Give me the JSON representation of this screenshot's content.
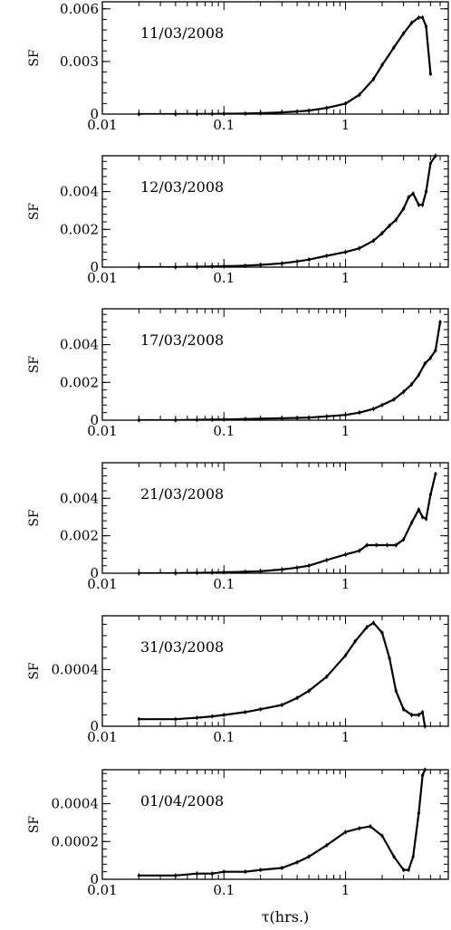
{
  "chart_data": [
    {
      "type": "line",
      "text": "11/03/2008",
      "ylabel": "SF",
      "x_ticks": [
        "0.01",
        "0.1",
        "1"
      ],
      "y_ticks": [
        {
          "v": 0,
          "label": "0"
        },
        {
          "v": 0.003,
          "label": "0.003"
        },
        {
          "v": 0.006,
          "label": "0.006"
        }
      ],
      "xlim": [
        0.01,
        7
      ],
      "ylim": [
        0,
        0.0064
      ],
      "xscale": "log",
      "x": [
        0.02,
        0.04,
        0.06,
        0.08,
        0.1,
        0.15,
        0.2,
        0.3,
        0.4,
        0.5,
        0.7,
        1.0,
        1.3,
        1.7,
        2.0,
        2.5,
        3.0,
        3.5,
        4.0,
        4.3,
        4.6,
        5.0
      ],
      "values": [
        0.0,
        0.0,
        1e-05,
        1e-05,
        2e-05,
        3e-05,
        5e-05,
        0.0001,
        0.00015,
        0.0002,
        0.00035,
        0.0006,
        0.0011,
        0.002,
        0.0028,
        0.0038,
        0.0046,
        0.0052,
        0.0055,
        0.0055,
        0.005,
        0.0023
      ]
    },
    {
      "type": "line",
      "text": "12/03/2008",
      "ylabel": "SF",
      "x_ticks": [
        "0.01",
        "0.1",
        "1"
      ],
      "y_ticks": [
        {
          "v": 0,
          "label": "0"
        },
        {
          "v": 0.002,
          "label": "0.002"
        },
        {
          "v": 0.004,
          "label": "0.004"
        }
      ],
      "xlim": [
        0.01,
        7
      ],
      "ylim": [
        0,
        0.0059
      ],
      "xscale": "log",
      "x": [
        0.02,
        0.04,
        0.06,
        0.08,
        0.1,
        0.15,
        0.2,
        0.3,
        0.4,
        0.5,
        0.7,
        1.0,
        1.3,
        1.7,
        2.0,
        2.3,
        2.6,
        3.0,
        3.3,
        3.6,
        4.0,
        4.3,
        4.6,
        5.0,
        5.5
      ],
      "values": [
        0.0,
        0.0,
        2e-05,
        3e-05,
        5e-05,
        8e-05,
        0.00012,
        0.0002,
        0.0003,
        0.0004,
        0.0006,
        0.0008,
        0.001,
        0.0014,
        0.0018,
        0.0022,
        0.0025,
        0.0031,
        0.0037,
        0.0039,
        0.0033,
        0.0033,
        0.004,
        0.0055,
        0.0059
      ]
    },
    {
      "type": "line",
      "text": "17/03/2008",
      "ylabel": "SF",
      "x_ticks": [
        "0.01",
        "0.1",
        "1"
      ],
      "y_ticks": [
        {
          "v": 0,
          "label": "0"
        },
        {
          "v": 0.002,
          "label": "0.002"
        },
        {
          "v": 0.004,
          "label": "0.004"
        }
      ],
      "xlim": [
        0.01,
        7
      ],
      "ylim": [
        0,
        0.0059
      ],
      "xscale": "log",
      "x": [
        0.02,
        0.04,
        0.06,
        0.08,
        0.1,
        0.15,
        0.2,
        0.3,
        0.4,
        0.5,
        0.7,
        1.0,
        1.3,
        1.7,
        2.0,
        2.5,
        3.0,
        3.5,
        4.0,
        4.5,
        5.0,
        5.5,
        6.0
      ],
      "values": [
        0.0,
        0.0,
        2e-05,
        3e-05,
        4e-05,
        6e-05,
        8e-05,
        0.0001,
        0.00012,
        0.00014,
        0.0002,
        0.00028,
        0.0004,
        0.0006,
        0.0008,
        0.0011,
        0.0015,
        0.0019,
        0.0024,
        0.003,
        0.0033,
        0.0037,
        0.0052
      ]
    },
    {
      "type": "line",
      "text": "21/03/2008",
      "ylabel": "SF",
      "x_ticks": [
        "0.01",
        "0.1",
        "1"
      ],
      "y_ticks": [
        {
          "v": 0,
          "label": "0"
        },
        {
          "v": 0.002,
          "label": "0.002"
        },
        {
          "v": 0.004,
          "label": "0.004"
        }
      ],
      "xlim": [
        0.01,
        7
      ],
      "ylim": [
        0,
        0.0059
      ],
      "xscale": "log",
      "x": [
        0.02,
        0.04,
        0.06,
        0.08,
        0.1,
        0.15,
        0.2,
        0.3,
        0.4,
        0.5,
        0.7,
        1.0,
        1.3,
        1.5,
        1.8,
        2.2,
        2.6,
        3.0,
        3.5,
        4.0,
        4.3,
        4.6,
        5.0,
        5.5
      ],
      "values": [
        0.0,
        0.0,
        2e-05,
        3e-05,
        5e-05,
        8e-05,
        0.0001,
        0.0002,
        0.0003,
        0.0004,
        0.0007,
        0.001,
        0.0012,
        0.0015,
        0.0015,
        0.0015,
        0.0015,
        0.0018,
        0.0027,
        0.0034,
        0.003,
        0.0029,
        0.0042,
        0.0053
      ]
    },
    {
      "type": "line",
      "text": "31/03/2008",
      "ylabel": "SF",
      "x_ticks": [
        "0.01",
        "0.1",
        "1"
      ],
      "y_ticks": [
        {
          "v": 0,
          "label": "0"
        },
        {
          "v": 0.0004,
          "label": "0.0004"
        }
      ],
      "xlim": [
        0.01,
        7
      ],
      "ylim": [
        0,
        0.00078
      ],
      "xscale": "log",
      "x": [
        0.02,
        0.04,
        0.06,
        0.08,
        0.1,
        0.15,
        0.2,
        0.3,
        0.4,
        0.5,
        0.7,
        1.0,
        1.2,
        1.5,
        1.7,
        2.0,
        2.3,
        2.6,
        3.0,
        3.5,
        4.0,
        4.3,
        4.5
      ],
      "values": [
        5e-05,
        5e-05,
        6e-05,
        7e-05,
        8e-05,
        0.0001,
        0.00012,
        0.00015,
        0.0002,
        0.00025,
        0.00035,
        0.0005,
        0.0006,
        0.0007,
        0.00073,
        0.00066,
        0.00048,
        0.00025,
        0.00012,
        8e-05,
        8e-05,
        0.0001,
        0.0
      ]
    },
    {
      "type": "line",
      "text": "01/04/2008",
      "ylabel": "SF",
      "x_ticks": [
        "0.01",
        "0.1",
        "1"
      ],
      "y_ticks": [
        {
          "v": 0,
          "label": "0"
        },
        {
          "v": 0.0002,
          "label": "0.0002"
        },
        {
          "v": 0.0004,
          "label": "0.0004"
        }
      ],
      "xlim": [
        0.01,
        7
      ],
      "ylim": [
        0,
        0.00058
      ],
      "xscale": "log",
      "x": [
        0.02,
        0.04,
        0.06,
        0.08,
        0.1,
        0.15,
        0.2,
        0.3,
        0.4,
        0.5,
        0.7,
        1.0,
        1.3,
        1.6,
        2.0,
        2.5,
        3.0,
        3.3,
        3.6,
        4.0,
        4.3,
        4.5
      ],
      "values": [
        2e-05,
        2e-05,
        3e-05,
        3e-05,
        4e-05,
        4e-05,
        5e-05,
        6e-05,
        9e-05,
        0.00012,
        0.00018,
        0.00025,
        0.00027,
        0.00028,
        0.00023,
        0.00012,
        5e-05,
        5e-05,
        0.00012,
        0.00035,
        0.00055,
        0.00058
      ]
    }
  ],
  "x_axis_title": "τ(hrs.)"
}
